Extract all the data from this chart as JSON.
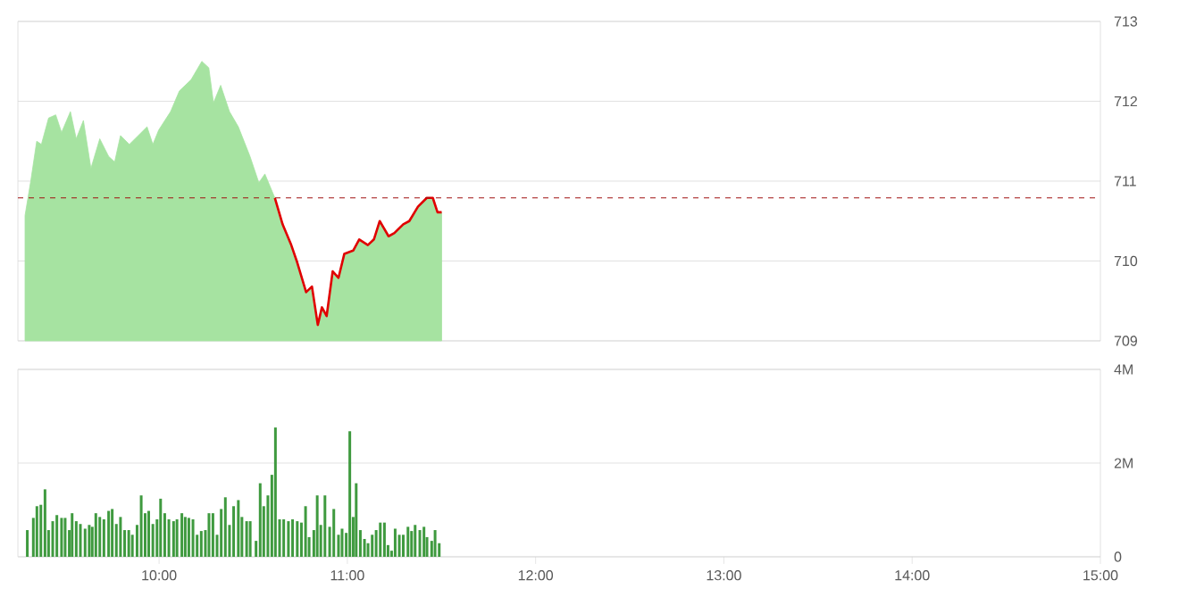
{
  "chart_data": [
    {
      "type": "area",
      "xlim": [
        9.25,
        15
      ],
      "ylim": [
        709,
        713
      ],
      "yticks": [
        709,
        710,
        711,
        712,
        713
      ],
      "grid": "y",
      "tick_labels": "y",
      "x": [
        9.288,
        9.319,
        9.35,
        9.375,
        9.413,
        9.451,
        9.482,
        9.529,
        9.56,
        9.598,
        9.638,
        9.685,
        9.732,
        9.764,
        9.795,
        9.842,
        9.889,
        9.936,
        9.967,
        9.998,
        10.061,
        10.108,
        10.17,
        10.227,
        10.264,
        10.289,
        10.327,
        10.374,
        10.421,
        10.483,
        10.53,
        10.562,
        10.615,
        10.656,
        10.702,
        10.734,
        10.781,
        10.812,
        10.843,
        10.865,
        10.89,
        10.922,
        10.953,
        10.984,
        11.031,
        11.063,
        11.109,
        11.141,
        11.172,
        11.219,
        11.25,
        11.297,
        11.329,
        11.375,
        11.422,
        11.454,
        11.479,
        11.501
      ],
      "series": [
        {
          "type": "area",
          "color": "#a6e3a1",
          "values": [
            710.57,
            711.01,
            711.5,
            711.46,
            711.79,
            711.83,
            711.61,
            711.87,
            711.53,
            711.76,
            711.16,
            711.53,
            711.31,
            711.24,
            711.57,
            711.46,
            711.57,
            711.68,
            711.46,
            711.64,
            711.87,
            712.13,
            712.27,
            712.5,
            712.42,
            711.98,
            712.2,
            711.87,
            711.68,
            711.31,
            710.98,
            711.09,
            710.79,
            710.46,
            710.2,
            709.98,
            709.61,
            709.68,
            709.2,
            709.42,
            709.31,
            709.87,
            709.79,
            710.09,
            710.13,
            710.27,
            710.2,
            710.27,
            710.5,
            710.31,
            710.35,
            710.46,
            710.5,
            710.68,
            710.79,
            710.79,
            710.61,
            710.61
          ]
        },
        {
          "type": "line",
          "color": "#e00000",
          "x": [
            10.615,
            10.656,
            10.702,
            10.734,
            10.781,
            10.812,
            10.843,
            10.865,
            10.89,
            10.922,
            10.953,
            10.984,
            11.031,
            11.063,
            11.109,
            11.141,
            11.172,
            11.219,
            11.25,
            11.297,
            11.329,
            11.375,
            11.422,
            11.454,
            11.479,
            11.501
          ],
          "values": [
            710.79,
            710.46,
            710.2,
            709.98,
            709.61,
            709.68,
            709.2,
            709.42,
            709.31,
            709.87,
            709.79,
            710.09,
            710.13,
            710.27,
            710.2,
            710.27,
            710.5,
            710.31,
            710.35,
            710.46,
            710.5,
            710.68,
            710.79,
            710.79,
            710.61,
            710.61
          ]
        }
      ],
      "ref_lines": [
        {
          "axis": "y",
          "value": 710.79,
          "color": "#a01010",
          "line_style": "dashed"
        }
      ]
    },
    {
      "type": "bar",
      "color": "#3f9a3f",
      "xlim": [
        9.25,
        15
      ],
      "ylim": [
        0,
        4
      ],
      "grid": "y",
      "yticks": [
        0,
        {
          "value": 2,
          "label": "2M"
        },
        {
          "value": 4,
          "label": "4M"
        }
      ],
      "xticks": [
        {
          "value": 10,
          "label": "10:00"
        },
        {
          "value": 11,
          "label": "11:00"
        },
        {
          "value": 12,
          "label": "12:00"
        },
        {
          "value": 13,
          "label": "13:00"
        },
        {
          "value": 14,
          "label": "14:00"
        },
        {
          "value": 15,
          "label": "15:00"
        }
      ],
      "x": [
        9.3,
        9.332,
        9.351,
        9.372,
        9.394,
        9.413,
        9.435,
        9.457,
        9.482,
        9.501,
        9.523,
        9.538,
        9.56,
        9.582,
        9.607,
        9.629,
        9.645,
        9.664,
        9.685,
        9.707,
        9.732,
        9.751,
        9.773,
        9.795,
        9.817,
        9.839,
        9.858,
        9.883,
        9.905,
        9.926,
        9.945,
        9.967,
        9.989,
        10.008,
        10.03,
        10.052,
        10.077,
        10.095,
        10.121,
        10.139,
        10.158,
        10.18,
        10.202,
        10.224,
        10.246,
        10.265,
        10.286,
        10.308,
        10.33,
        10.352,
        10.374,
        10.396,
        10.421,
        10.44,
        10.465,
        10.484,
        10.515,
        10.537,
        10.556,
        10.578,
        10.599,
        10.618,
        10.64,
        10.662,
        10.687,
        10.709,
        10.734,
        10.756,
        10.778,
        10.797,
        10.822,
        10.84,
        10.859,
        10.881,
        10.906,
        10.928,
        10.953,
        10.972,
        10.994,
        11.013,
        11.031,
        11.047,
        11.069,
        11.091,
        11.11,
        11.132,
        11.153,
        11.175,
        11.197,
        11.216,
        11.235,
        11.254,
        11.276,
        11.297,
        11.322,
        11.341,
        11.36,
        11.385,
        11.407,
        11.423,
        11.448,
        11.466,
        11.488
      ],
      "values": [
        0.57,
        0.83,
        1.08,
        1.11,
        1.44,
        0.57,
        0.76,
        0.89,
        0.83,
        0.83,
        0.57,
        0.93,
        0.76,
        0.7,
        0.6,
        0.68,
        0.64,
        0.93,
        0.85,
        0.8,
        0.98,
        1.02,
        0.7,
        0.85,
        0.57,
        0.57,
        0.47,
        0.68,
        1.31,
        0.93,
        0.98,
        0.7,
        0.8,
        1.24,
        0.93,
        0.8,
        0.76,
        0.8,
        0.93,
        0.85,
        0.83,
        0.8,
        0.47,
        0.55,
        0.57,
        0.93,
        0.93,
        0.47,
        1.02,
        1.27,
        0.68,
        1.08,
        1.21,
        0.85,
        0.76,
        0.76,
        0.34,
        1.57,
        1.08,
        1.31,
        1.75,
        2.76,
        0.8,
        0.8,
        0.76,
        0.8,
        0.76,
        0.73,
        1.08,
        0.42,
        0.57,
        1.31,
        0.68,
        1.31,
        0.64,
        1.02,
        0.47,
        0.6,
        0.51,
        2.68,
        0.85,
        1.57,
        0.57,
        0.38,
        0.29,
        0.47,
        0.57,
        0.73,
        0.73,
        0.25,
        0.13,
        0.6,
        0.47,
        0.47,
        0.64,
        0.55,
        0.68,
        0.57,
        0.64,
        0.42,
        0.34,
        0.57,
        0.29
      ]
    }
  ]
}
